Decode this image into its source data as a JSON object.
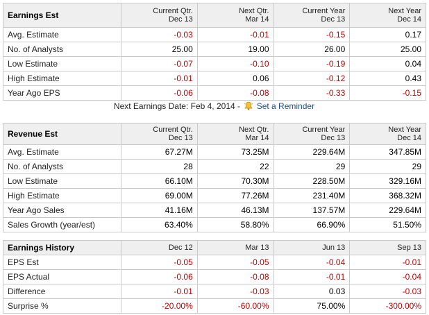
{
  "earnings_est": {
    "title": "Earnings Est",
    "headers": [
      {
        "l1": "Current Qtr.",
        "l2": "Dec 13"
      },
      {
        "l1": "Next Qtr.",
        "l2": "Mar 14"
      },
      {
        "l1": "Current Year",
        "l2": "Dec 13"
      },
      {
        "l1": "Next Year",
        "l2": "Dec 14"
      }
    ],
    "rows": [
      {
        "label": "Avg. Estimate",
        "values": [
          "-0.03",
          "-0.01",
          "-0.15",
          "0.17"
        ]
      },
      {
        "label": "No. of Analysts",
        "values": [
          "25.00",
          "19.00",
          "26.00",
          "25.00"
        ]
      },
      {
        "label": "Low Estimate",
        "values": [
          "-0.07",
          "-0.10",
          "-0.19",
          "0.04"
        ]
      },
      {
        "label": "High Estimate",
        "values": [
          "-0.01",
          "0.06",
          "-0.12",
          "0.43"
        ]
      },
      {
        "label": "Year Ago EPS",
        "values": [
          "-0.06",
          "-0.08",
          "-0.33",
          "-0.15"
        ]
      }
    ]
  },
  "next_earnings": {
    "text": "Next Earnings Date: Feb 4, 2014 -",
    "icon": "bell-icon",
    "reminder_label": "Set a Reminder"
  },
  "revenue_est": {
    "title": "Revenue Est",
    "headers": [
      {
        "l1": "Current Qtr.",
        "l2": "Dec 13"
      },
      {
        "l1": "Next Qtr.",
        "l2": "Mar 14"
      },
      {
        "l1": "Current Year",
        "l2": "Dec 13"
      },
      {
        "l1": "Next Year",
        "l2": "Dec 14"
      }
    ],
    "rows": [
      {
        "label": "Avg. Estimate",
        "values": [
          "67.27M",
          "73.25M",
          "229.64M",
          "347.85M"
        ]
      },
      {
        "label": "No. of Analysts",
        "values": [
          "28",
          "22",
          "29",
          "29"
        ]
      },
      {
        "label": "Low Estimate",
        "values": [
          "66.10M",
          "70.30M",
          "228.50M",
          "329.16M"
        ]
      },
      {
        "label": "High Estimate",
        "values": [
          "69.00M",
          "77.26M",
          "231.40M",
          "368.32M"
        ]
      },
      {
        "label": "Year Ago Sales",
        "values": [
          "41.16M",
          "46.13M",
          "137.57M",
          "229.64M"
        ]
      },
      {
        "label": "Sales Growth (year/est)",
        "values": [
          "63.40%",
          "58.80%",
          "66.90%",
          "51.50%"
        ]
      }
    ]
  },
  "earnings_history": {
    "title": "Earnings History",
    "headers": [
      "Dec 12",
      "Mar 13",
      "Jun 13",
      "Sep 13"
    ],
    "rows": [
      {
        "label": "EPS Est",
        "values": [
          "-0.05",
          "-0.05",
          "-0.04",
          "-0.01"
        ]
      },
      {
        "label": "EPS Actual",
        "values": [
          "-0.06",
          "-0.08",
          "-0.01",
          "-0.04"
        ]
      },
      {
        "label": "Difference",
        "values": [
          "-0.01",
          "-0.03",
          "0.03",
          "-0.03"
        ]
      },
      {
        "label": "Surprise %",
        "values": [
          "-20.00%",
          "-60.00%",
          "75.00%",
          "-300.00%"
        ]
      }
    ]
  },
  "colors": {
    "negative": "#c00000",
    "header_bg": "#efefef",
    "border": "#c9c9c9",
    "link": "#1d4e8f"
  }
}
